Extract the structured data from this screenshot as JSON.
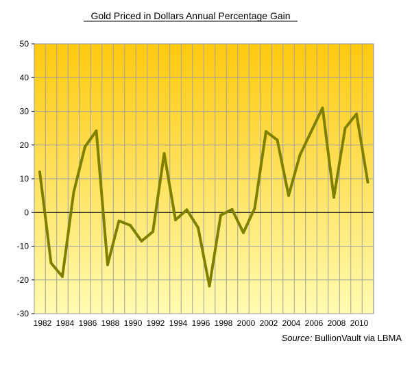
{
  "chart_data": {
    "type": "line",
    "title": "Gold Priced in Dollars Annual Percentage Gain",
    "xlabel": "",
    "ylabel": "",
    "ylim": [
      -30,
      50
    ],
    "y_ticks": [
      "50",
      "40",
      "30",
      "20",
      "10",
      "0",
      "-10",
      "-20",
      "-30"
    ],
    "x_tick_labels": [
      "1982",
      "1984",
      "1986",
      "1988",
      "1990",
      "1992",
      "1994",
      "1996",
      "1998",
      "2000",
      "2002",
      "2004",
      "2006",
      "2008",
      "2010"
    ],
    "grid": true,
    "background_gradient": {
      "top": "#FFC90E",
      "bottom": "#FFFBB0"
    },
    "line_color": "#808000",
    "series": [
      {
        "x": [
          1982,
          1983,
          1984,
          1985,
          1986,
          1987,
          1988,
          1989,
          1990,
          1991,
          1992,
          1993,
          1994,
          1995,
          1996,
          1997,
          1998,
          1999,
          2000,
          2001,
          2002,
          2003,
          2004,
          2005,
          2006,
          2007,
          2008,
          2009,
          2010,
          2011
        ],
        "values": [
          12,
          -15,
          -19,
          6,
          19.5,
          24.2,
          -15.5,
          -2.5,
          -3.8,
          -8.5,
          -5.7,
          17.5,
          -2.2,
          0.8,
          -4.5,
          -21.8,
          -0.8,
          0.9,
          -6,
          1.2,
          24,
          21.5,
          5,
          17,
          24,
          31,
          4.5,
          25,
          29.2,
          9
        ]
      }
    ],
    "source_prefix": "Source:",
    "source_text": "BullionVault via LBMA"
  }
}
